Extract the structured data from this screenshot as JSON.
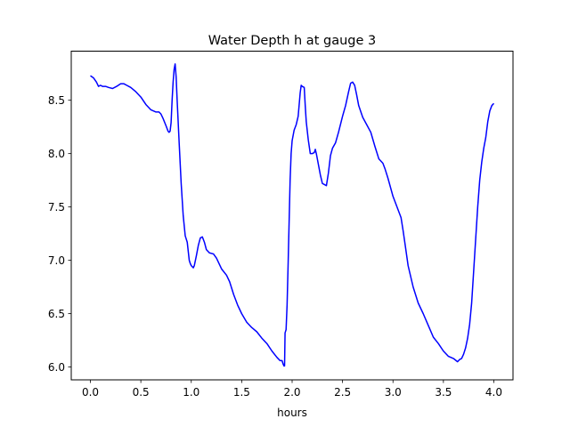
{
  "chart_data": {
    "type": "line",
    "title": "Water Depth h at gauge 3",
    "xlabel": "hours",
    "ylabel": "",
    "xlim": [
      -0.19,
      4.19
    ],
    "ylim": [
      5.88,
      8.96
    ],
    "x_ticks": [
      0.0,
      0.5,
      1.0,
      1.5,
      2.0,
      2.5,
      3.0,
      3.5,
      4.0
    ],
    "x_tick_labels": [
      "0.0",
      "0.5",
      "1.0",
      "1.5",
      "2.0",
      "2.5",
      "3.0",
      "3.5",
      "4.0"
    ],
    "y_ticks": [
      6.0,
      6.5,
      7.0,
      7.5,
      8.0,
      8.5
    ],
    "y_tick_labels": [
      "6.0",
      "6.5",
      "7.0",
      "7.5",
      "8.0",
      "8.5"
    ],
    "grid": false,
    "series": [
      {
        "color": "#0000ff",
        "x": [
          0.0,
          0.03,
          0.06,
          0.08,
          0.1,
          0.12,
          0.15,
          0.18,
          0.22,
          0.26,
          0.3,
          0.33,
          0.36,
          0.4,
          0.45,
          0.5,
          0.55,
          0.6,
          0.65,
          0.68,
          0.7,
          0.72,
          0.75,
          0.77,
          0.78,
          0.79,
          0.8,
          0.81,
          0.82,
          0.83,
          0.84,
          0.85,
          0.86,
          0.88,
          0.9,
          0.92,
          0.94,
          0.96,
          0.98,
          0.99,
          1.0,
          1.02,
          1.03,
          1.05,
          1.07,
          1.09,
          1.11,
          1.13,
          1.15,
          1.18,
          1.22,
          1.25,
          1.3,
          1.35,
          1.38,
          1.42,
          1.46,
          1.5,
          1.55,
          1.6,
          1.65,
          1.7,
          1.75,
          1.8,
          1.85,
          1.88,
          1.9,
          1.91,
          1.92,
          1.925,
          1.93,
          1.94,
          1.95,
          1.96,
          1.97,
          1.98,
          1.99,
          2.0,
          2.02,
          2.04,
          2.06,
          2.08,
          2.09,
          2.1,
          2.12,
          2.13,
          2.14,
          2.16,
          2.18,
          2.2,
          2.22,
          2.23,
          2.24,
          2.26,
          2.28,
          2.3,
          2.32,
          2.34,
          2.36,
          2.38,
          2.4,
          2.43,
          2.46,
          2.5,
          2.53,
          2.56,
          2.58,
          2.6,
          2.62,
          2.64,
          2.66,
          2.7,
          2.74,
          2.78,
          2.82,
          2.86,
          2.9,
          2.92,
          2.95,
          3.0,
          3.04,
          3.08,
          3.1,
          3.12,
          3.15,
          3.2,
          3.25,
          3.3,
          3.35,
          3.4,
          3.45,
          3.5,
          3.55,
          3.6,
          3.64,
          3.66,
          3.68,
          3.7,
          3.72,
          3.74,
          3.76,
          3.78,
          3.8,
          3.82,
          3.84,
          3.86,
          3.88,
          3.9,
          3.92,
          3.94,
          3.96,
          3.98,
          4.0
        ],
        "y": [
          8.73,
          8.71,
          8.67,
          8.63,
          8.64,
          8.63,
          8.63,
          8.62,
          8.61,
          8.63,
          8.655,
          8.655,
          8.64,
          8.62,
          8.58,
          8.53,
          8.46,
          8.41,
          8.39,
          8.39,
          8.37,
          8.33,
          8.26,
          8.21,
          8.2,
          8.21,
          8.29,
          8.5,
          8.67,
          8.79,
          8.84,
          8.72,
          8.5,
          8.1,
          7.72,
          7.42,
          7.23,
          7.17,
          7.0,
          6.97,
          6.95,
          6.93,
          6.95,
          7.04,
          7.14,
          7.21,
          7.22,
          7.17,
          7.1,
          7.07,
          7.06,
          7.02,
          6.92,
          6.86,
          6.8,
          6.68,
          6.58,
          6.5,
          6.42,
          6.37,
          6.33,
          6.27,
          6.22,
          6.15,
          6.09,
          6.06,
          6.06,
          6.03,
          6.01,
          6.01,
          6.32,
          6.35,
          6.58,
          6.95,
          7.35,
          7.75,
          8.0,
          8.12,
          8.22,
          8.27,
          8.35,
          8.57,
          8.64,
          8.63,
          8.62,
          8.45,
          8.3,
          8.13,
          8.0,
          8.0,
          8.01,
          8.04,
          8.0,
          7.9,
          7.8,
          7.72,
          7.71,
          7.7,
          7.82,
          7.98,
          8.05,
          8.1,
          8.2,
          8.35,
          8.45,
          8.58,
          8.66,
          8.67,
          8.64,
          8.55,
          8.45,
          8.34,
          8.27,
          8.2,
          8.07,
          7.95,
          7.91,
          7.86,
          7.77,
          7.6,
          7.5,
          7.4,
          7.28,
          7.15,
          6.95,
          6.75,
          6.6,
          6.5,
          6.39,
          6.28,
          6.22,
          6.15,
          6.1,
          6.08,
          6.05,
          6.07,
          6.08,
          6.12,
          6.18,
          6.27,
          6.4,
          6.6,
          6.9,
          7.2,
          7.5,
          7.75,
          7.92,
          8.05,
          8.15,
          8.3,
          8.4,
          8.45,
          8.47
        ]
      }
    ]
  }
}
